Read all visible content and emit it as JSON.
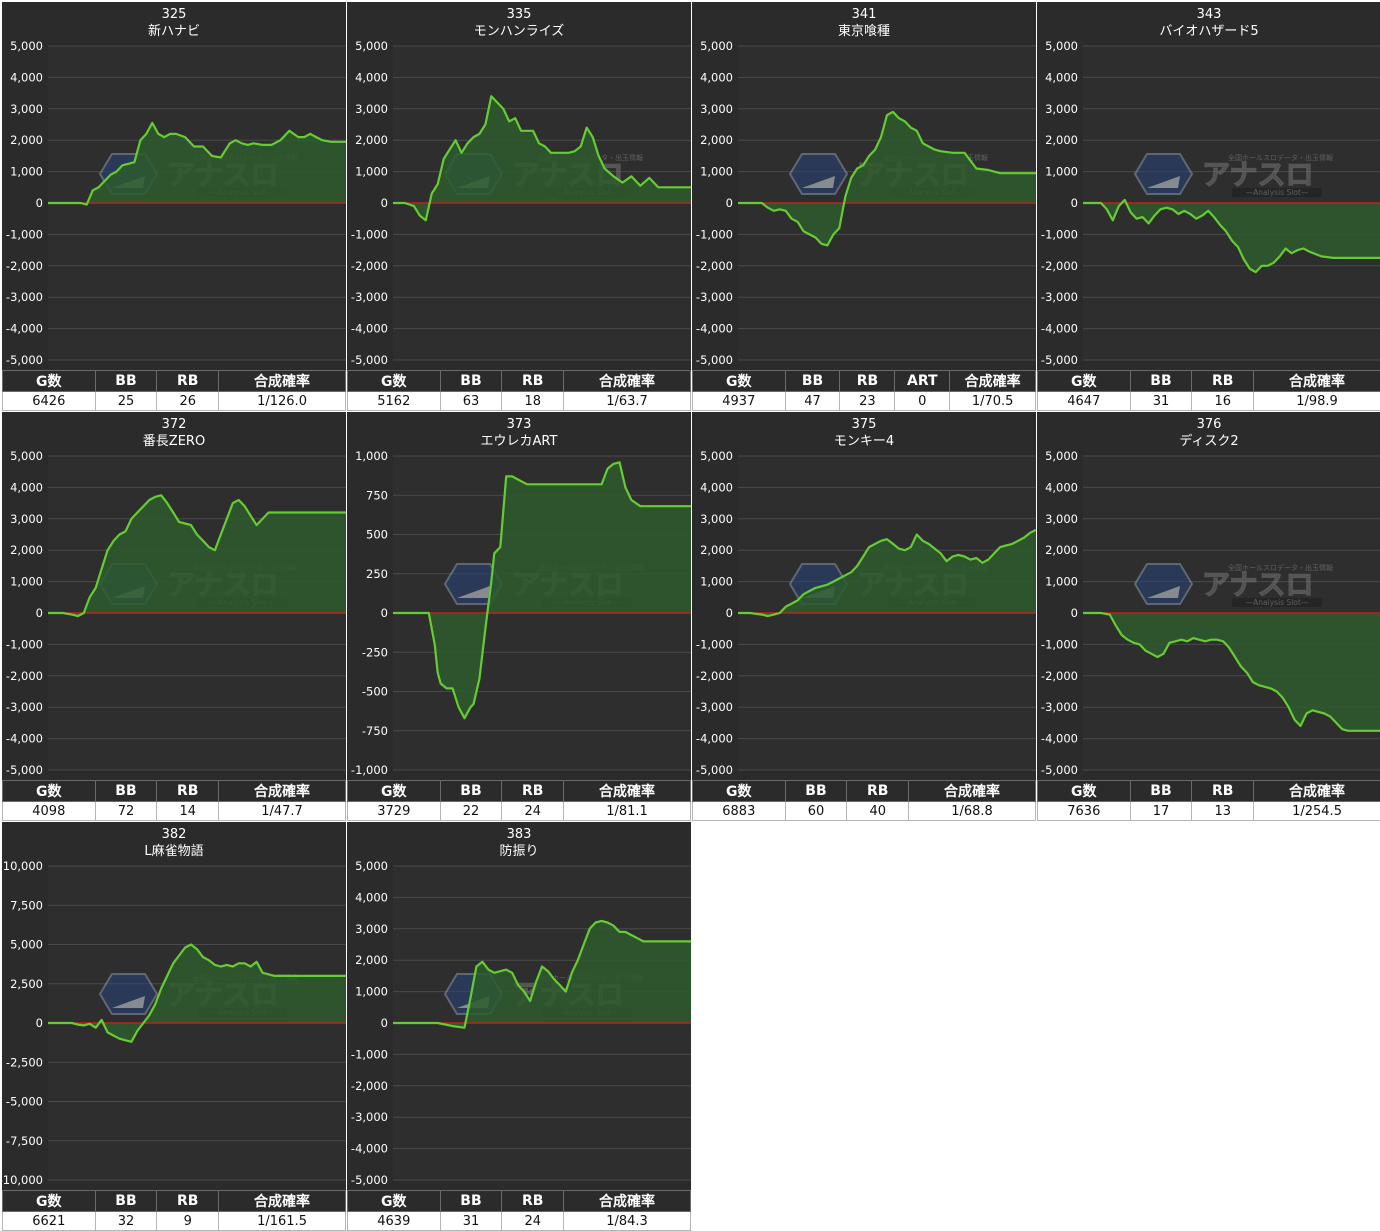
{
  "colors": {
    "panel_bg": "#2b2b2b",
    "plot_bg": "#2e2e2e",
    "grid": "#4a4a4a",
    "zero_line": "#c8231b",
    "series_line": "#66cc33",
    "series_fill": "#2d5a2d"
  },
  "watermark": {
    "main": "アナスロ",
    "sub": "—Analysis Slot—",
    "top": "全国ホールスロデータ・出玉情報",
    "icon": "diamond-logo-icon"
  },
  "charts": [
    {
      "number": "325",
      "name": "新ハナビ",
      "ylim": [
        -5000,
        5000
      ],
      "yticks": [
        "5,000",
        "4,000",
        "3,000",
        "2,000",
        "1,000",
        "0",
        "-1,000",
        "-2,000",
        "-3,000",
        "-4,000",
        "-5,000"
      ],
      "chart_data": {
        "type": "area",
        "x": [
          0,
          0.06,
          0.11,
          0.13,
          0.15,
          0.17,
          0.19,
          0.21,
          0.23,
          0.25,
          0.27,
          0.29,
          0.31,
          0.33,
          0.35,
          0.37,
          0.39,
          0.41,
          0.43,
          0.46,
          0.49,
          0.52,
          0.55,
          0.58,
          0.61,
          0.63,
          0.65,
          0.67,
          0.69,
          0.72,
          0.75,
          0.78,
          0.81,
          0.84,
          0.86,
          0.88,
          0.9,
          0.92,
          0.95,
          0.98,
          1.0
        ],
        "y": [
          0,
          0,
          0,
          -50,
          400,
          500,
          700,
          900,
          1000,
          1200,
          1250,
          1300,
          2000,
          2200,
          2550,
          2200,
          2100,
          2200,
          2200,
          2100,
          1800,
          1800,
          1500,
          1450,
          1900,
          2000,
          1900,
          1850,
          1900,
          1850,
          1850,
          2000,
          2300,
          2100,
          2100,
          2200,
          2100,
          2000,
          1950,
          1950,
          1950
        ]
      },
      "headers": [
        "G数",
        "BB",
        "RB",
        "合成確率"
      ],
      "values": [
        "6426",
        "25",
        "26",
        "1/126.0"
      ]
    },
    {
      "number": "335",
      "name": "モンハンライズ",
      "ylim": [
        -5000,
        5000
      ],
      "yticks": [
        "5,000",
        "4,000",
        "3,000",
        "2,000",
        "1,000",
        "0",
        "-1,000",
        "-2,000",
        "-3,000",
        "-4,000",
        "-5,000"
      ],
      "chart_data": {
        "type": "area",
        "x": [
          0,
          0.04,
          0.07,
          0.09,
          0.11,
          0.13,
          0.15,
          0.17,
          0.19,
          0.21,
          0.23,
          0.25,
          0.27,
          0.29,
          0.31,
          0.33,
          0.35,
          0.37,
          0.39,
          0.41,
          0.43,
          0.45,
          0.47,
          0.49,
          0.51,
          0.53,
          0.55,
          0.57,
          0.59,
          0.61,
          0.63,
          0.65,
          0.67,
          0.69,
          0.71,
          0.74,
          0.77,
          0.8,
          0.83,
          0.86,
          0.89,
          0.92,
          0.95,
          1.0
        ],
        "y": [
          0,
          0,
          -100,
          -400,
          -550,
          300,
          600,
          1400,
          1700,
          2000,
          1600,
          1900,
          2100,
          2200,
          2500,
          3400,
          3200,
          3000,
          2600,
          2700,
          2300,
          2300,
          2300,
          1900,
          1800,
          1600,
          1600,
          1600,
          1600,
          1650,
          1800,
          2400,
          2100,
          1500,
          1100,
          850,
          650,
          850,
          550,
          800,
          500,
          500,
          500,
          500
        ]
      },
      "headers": [
        "G数",
        "BB",
        "RB",
        "合成確率"
      ],
      "values": [
        "5162",
        "63",
        "18",
        "1/63.7"
      ]
    },
    {
      "number": "341",
      "name": "東京喰種",
      "ylim": [
        -5000,
        5000
      ],
      "yticks": [
        "5,000",
        "4,000",
        "3,000",
        "2,000",
        "1,000",
        "0",
        "-1,000",
        "-2,000",
        "-3,000",
        "-4,000",
        "-5,000"
      ],
      "chart_data": {
        "type": "area",
        "x": [
          0,
          0.08,
          0.1,
          0.12,
          0.14,
          0.16,
          0.18,
          0.2,
          0.22,
          0.24,
          0.26,
          0.28,
          0.3,
          0.32,
          0.34,
          0.36,
          0.38,
          0.4,
          0.42,
          0.44,
          0.46,
          0.48,
          0.5,
          0.52,
          0.54,
          0.56,
          0.58,
          0.6,
          0.62,
          0.64,
          0.66,
          0.68,
          0.72,
          0.76,
          0.8,
          0.84,
          0.88,
          0.92,
          0.96,
          1.0
        ],
        "y": [
          0,
          0,
          -150,
          -250,
          -200,
          -250,
          -500,
          -600,
          -900,
          -1000,
          -1100,
          -1300,
          -1350,
          -1000,
          -800,
          200,
          800,
          1100,
          1200,
          1500,
          1700,
          2100,
          2800,
          2900,
          2700,
          2600,
          2400,
          2300,
          1900,
          1800,
          1700,
          1650,
          1600,
          1600,
          1100,
          1050,
          950,
          950,
          950,
          950
        ]
      },
      "headers": [
        "G数",
        "BB",
        "RB",
        "ART",
        "合成確率"
      ],
      "values": [
        "4937",
        "47",
        "23",
        "0",
        "1/70.5"
      ]
    },
    {
      "number": "343",
      "name": "バイオハザード5",
      "ylim": [
        -5000,
        5000
      ],
      "yticks": [
        "5,000",
        "4,000",
        "3,000",
        "2,000",
        "1,000",
        "0",
        "-1,000",
        "-2,000",
        "-3,000",
        "-4,000",
        "-5,000"
      ],
      "chart_data": {
        "type": "area",
        "x": [
          0,
          0.06,
          0.08,
          0.1,
          0.12,
          0.14,
          0.16,
          0.18,
          0.2,
          0.22,
          0.24,
          0.26,
          0.28,
          0.3,
          0.32,
          0.34,
          0.36,
          0.38,
          0.4,
          0.42,
          0.44,
          0.46,
          0.48,
          0.5,
          0.52,
          0.54,
          0.56,
          0.58,
          0.6,
          0.62,
          0.64,
          0.66,
          0.68,
          0.7,
          0.72,
          0.74,
          0.76,
          0.8,
          0.84,
          0.88,
          1.0
        ],
        "y": [
          0,
          0,
          -200,
          -550,
          -100,
          100,
          -300,
          -500,
          -450,
          -650,
          -400,
          -200,
          -150,
          -200,
          -350,
          -250,
          -350,
          -500,
          -400,
          -250,
          -450,
          -700,
          -900,
          -1200,
          -1400,
          -1800,
          -2100,
          -2200,
          -2000,
          -2000,
          -1900,
          -1700,
          -1450,
          -1600,
          -1500,
          -1450,
          -1550,
          -1700,
          -1750,
          -1750,
          -1750
        ]
      },
      "headers": [
        "G数",
        "BB",
        "RB",
        "合成確率"
      ],
      "values": [
        "4647",
        "31",
        "16",
        "1/98.9"
      ]
    },
    {
      "number": "372",
      "name": "番長ZERO",
      "ylim": [
        -5000,
        5000
      ],
      "yticks": [
        "5,000",
        "4,000",
        "3,000",
        "2,000",
        "1,000",
        "0",
        "-1,000",
        "-2,000",
        "-3,000",
        "-4,000",
        "-5,000"
      ],
      "chart_data": {
        "type": "area",
        "x": [
          0,
          0.05,
          0.08,
          0.1,
          0.12,
          0.14,
          0.16,
          0.18,
          0.2,
          0.22,
          0.24,
          0.26,
          0.28,
          0.3,
          0.32,
          0.34,
          0.36,
          0.38,
          0.4,
          0.42,
          0.44,
          0.46,
          0.48,
          0.5,
          0.52,
          0.54,
          0.56,
          0.58,
          0.6,
          0.62,
          0.64,
          0.66,
          0.68,
          0.7,
          0.72,
          0.74,
          0.76,
          0.78,
          0.8,
          0.84,
          0.9,
          1.0
        ],
        "y": [
          0,
          0,
          -50,
          -100,
          0,
          500,
          800,
          1400,
          2000,
          2300,
          2500,
          2600,
          3000,
          3200,
          3400,
          3600,
          3700,
          3750,
          3500,
          3200,
          2900,
          2850,
          2800,
          2500,
          2300,
          2100,
          2000,
          2500,
          3000,
          3500,
          3600,
          3400,
          3100,
          2800,
          3000,
          3200,
          3200,
          3200,
          3200,
          3200,
          3200,
          3200
        ]
      },
      "headers": [
        "G数",
        "BB",
        "RB",
        "合成確率"
      ],
      "values": [
        "4098",
        "72",
        "14",
        "1/47.7"
      ]
    },
    {
      "number": "373",
      "name": "エウレカART",
      "ylim": [
        -1000,
        1000
      ],
      "yticks": [
        "1,000",
        "750",
        "500",
        "250",
        "0",
        "-250",
        "-500",
        "-750",
        "-1,000"
      ],
      "chart_data": {
        "type": "area",
        "x": [
          0,
          0.12,
          0.14,
          0.15,
          0.16,
          0.18,
          0.2,
          0.22,
          0.24,
          0.26,
          0.27,
          0.29,
          0.31,
          0.33,
          0.34,
          0.36,
          0.38,
          0.4,
          0.42,
          0.45,
          0.5,
          0.55,
          0.6,
          0.65,
          0.7,
          0.72,
          0.74,
          0.76,
          0.78,
          0.8,
          0.83,
          0.86,
          0.9,
          1.0
        ],
        "y": [
          0,
          0,
          -200,
          -380,
          -450,
          -480,
          -480,
          -600,
          -670,
          -600,
          -580,
          -420,
          -100,
          200,
          380,
          420,
          870,
          870,
          850,
          820,
          820,
          820,
          820,
          820,
          820,
          920,
          950,
          960,
          800,
          720,
          680,
          680,
          680,
          680
        ]
      },
      "headers": [
        "G数",
        "BB",
        "RB",
        "合成確率"
      ],
      "values": [
        "3729",
        "22",
        "24",
        "1/81.1"
      ]
    },
    {
      "number": "375",
      "name": "モンキー4",
      "ylim": [
        -5000,
        5000
      ],
      "yticks": [
        "5,000",
        "4,000",
        "3,000",
        "2,000",
        "1,000",
        "0",
        "-1,000",
        "-2,000",
        "-3,000",
        "-4,000",
        "-5,000"
      ],
      "chart_data": {
        "type": "area",
        "x": [
          0,
          0.04,
          0.08,
          0.1,
          0.12,
          0.14,
          0.16,
          0.18,
          0.2,
          0.22,
          0.24,
          0.26,
          0.28,
          0.3,
          0.32,
          0.34,
          0.36,
          0.38,
          0.4,
          0.42,
          0.44,
          0.46,
          0.48,
          0.5,
          0.52,
          0.54,
          0.56,
          0.58,
          0.6,
          0.62,
          0.64,
          0.66,
          0.68,
          0.7,
          0.72,
          0.74,
          0.76,
          0.78,
          0.8,
          0.82,
          0.84,
          0.86,
          0.88,
          0.9,
          0.92,
          0.94,
          0.96,
          0.98,
          1.0
        ],
        "y": [
          0,
          0,
          -50,
          -100,
          -50,
          0,
          200,
          300,
          400,
          600,
          700,
          800,
          850,
          900,
          1000,
          1100,
          1200,
          1300,
          1500,
          1800,
          2100,
          2200,
          2300,
          2350,
          2200,
          2050,
          2000,
          2100,
          2500,
          2300,
          2200,
          2050,
          1900,
          1650,
          1800,
          1850,
          1800,
          1700,
          1750,
          1600,
          1700,
          1900,
          2100,
          2150,
          2200,
          2300,
          2400,
          2550,
          2650
        ]
      },
      "headers": [
        "G数",
        "BB",
        "RB",
        "合成確率"
      ],
      "values": [
        "6883",
        "60",
        "40",
        "1/68.8"
      ]
    },
    {
      "number": "376",
      "name": "ディスク2",
      "ylim": [
        -5000,
        5000
      ],
      "yticks": [
        "5,000",
        "4,000",
        "3,000",
        "2,000",
        "1,000",
        "0",
        "-1,000",
        "-2,000",
        "-3,000",
        "-4,000",
        "-5,000"
      ],
      "chart_data": {
        "type": "area",
        "x": [
          0,
          0.06,
          0.09,
          0.11,
          0.13,
          0.15,
          0.17,
          0.19,
          0.21,
          0.23,
          0.25,
          0.27,
          0.29,
          0.31,
          0.33,
          0.35,
          0.37,
          0.39,
          0.41,
          0.43,
          0.45,
          0.47,
          0.49,
          0.51,
          0.53,
          0.55,
          0.57,
          0.59,
          0.61,
          0.63,
          0.65,
          0.67,
          0.69,
          0.71,
          0.73,
          0.75,
          0.77,
          0.79,
          0.81,
          0.83,
          0.85,
          0.87,
          0.89,
          0.91,
          0.93,
          0.95,
          1.0
        ],
        "y": [
          0,
          0,
          -50,
          -400,
          -700,
          -850,
          -950,
          -1000,
          -1200,
          -1300,
          -1400,
          -1300,
          -950,
          -900,
          -850,
          -900,
          -800,
          -850,
          -900,
          -850,
          -850,
          -900,
          -1100,
          -1400,
          -1700,
          -1900,
          -2200,
          -2300,
          -2350,
          -2400,
          -2500,
          -2700,
          -3000,
          -3400,
          -3600,
          -3200,
          -3100,
          -3150,
          -3200,
          -3300,
          -3500,
          -3700,
          -3750,
          -3750,
          -3750,
          -3750,
          -3750
        ]
      },
      "headers": [
        "G数",
        "BB",
        "RB",
        "合成確率"
      ],
      "values": [
        "7636",
        "17",
        "13",
        "1/254.5"
      ]
    },
    {
      "number": "382",
      "name": "L麻雀物語",
      "ylim": [
        -10000,
        10000
      ],
      "yticks": [
        "10,000",
        "7,500",
        "5,000",
        "2,500",
        "0",
        "-2,500",
        "-5,000",
        "-7,500",
        "-10,000"
      ],
      "chart_data": {
        "type": "area",
        "x": [
          0,
          0.08,
          0.1,
          0.12,
          0.14,
          0.16,
          0.18,
          0.2,
          0.22,
          0.24,
          0.26,
          0.28,
          0.3,
          0.32,
          0.34,
          0.36,
          0.38,
          0.4,
          0.42,
          0.44,
          0.46,
          0.48,
          0.5,
          0.52,
          0.54,
          0.56,
          0.58,
          0.6,
          0.62,
          0.64,
          0.66,
          0.68,
          0.7,
          0.72,
          0.74,
          0.76,
          0.78,
          0.8,
          0.84,
          0.9,
          1.0
        ],
        "y": [
          0,
          0,
          -100,
          -150,
          -50,
          -300,
          200,
          -600,
          -800,
          -1000,
          -1100,
          -1200,
          -500,
          0,
          500,
          1200,
          2200,
          3000,
          3800,
          4300,
          4800,
          5000,
          4700,
          4200,
          4000,
          3700,
          3600,
          3700,
          3600,
          3800,
          3800,
          3600,
          3900,
          3200,
          3100,
          3000,
          3000,
          3000,
          3000,
          3000,
          3000
        ]
      },
      "headers": [
        "G数",
        "BB",
        "RB",
        "合成確率"
      ],
      "values": [
        "6621",
        "32",
        "9",
        "1/161.5"
      ]
    },
    {
      "number": "383",
      "name": "防振り",
      "ylim": [
        -5000,
        5000
      ],
      "yticks": [
        "5,000",
        "4,000",
        "3,000",
        "2,000",
        "1,000",
        "0",
        "-1,000",
        "-2,000",
        "-3,000",
        "-4,000",
        "-5,000"
      ],
      "chart_data": {
        "type": "area",
        "x": [
          0,
          0.1,
          0.15,
          0.2,
          0.24,
          0.26,
          0.28,
          0.3,
          0.32,
          0.34,
          0.36,
          0.38,
          0.4,
          0.42,
          0.44,
          0.46,
          0.48,
          0.5,
          0.52,
          0.54,
          0.56,
          0.58,
          0.6,
          0.62,
          0.64,
          0.66,
          0.68,
          0.7,
          0.72,
          0.74,
          0.76,
          0.78,
          0.8,
          0.82,
          0.84,
          0.86,
          0.88,
          0.9,
          0.92,
          0.95,
          1.0
        ],
        "y": [
          0,
          0,
          0,
          -100,
          -150,
          800,
          1800,
          1950,
          1700,
          1600,
          1650,
          1700,
          1600,
          1200,
          1000,
          700,
          1300,
          1800,
          1650,
          1400,
          1200,
          1000,
          1600,
          2000,
          2500,
          3000,
          3200,
          3250,
          3200,
          3100,
          2900,
          2900,
          2800,
          2700,
          2600,
          2600,
          2600,
          2600,
          2600,
          2600,
          2600
        ]
      },
      "headers": [
        "G数",
        "BB",
        "RB",
        "合成確率"
      ],
      "values": [
        "4639",
        "31",
        "24",
        "1/84.3"
      ]
    }
  ]
}
